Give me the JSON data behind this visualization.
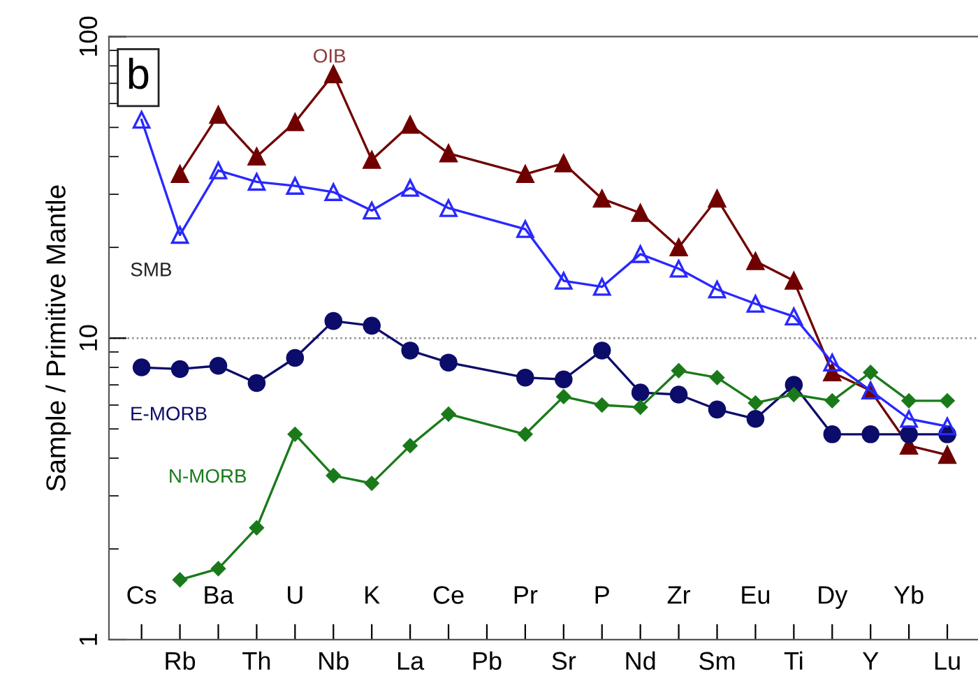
{
  "chart_data": {
    "type": "line",
    "ylabel": "Sample / Primitive Mantle",
    "log": true,
    "ylim": [
      1,
      100
    ],
    "yticks": [
      1,
      10,
      100
    ],
    "grid": false,
    "legend": false,
    "line_style": "solid",
    "categories": [
      "Cs",
      "Rb",
      "Ba",
      "Th",
      "U",
      "Nb",
      "K",
      "La",
      "Ce",
      "Pb",
      "Pr",
      "Sr",
      "P",
      "Nd",
      "Zr",
      "Sm",
      "Eu",
      "Ti",
      "Dy",
      "Y",
      "Yb",
      "Lu"
    ],
    "series": [
      {
        "name": "OIB",
        "color": "#700000",
        "marker": "triangle",
        "values": [
          null,
          35,
          55,
          40,
          52,
          75,
          39,
          51,
          41,
          null,
          35,
          38,
          29,
          26,
          20,
          29,
          18,
          15.5,
          7.7,
          6.7,
          4.4,
          4.1
        ]
      },
      {
        "name": "SMB",
        "color": "#2828ff",
        "marker": "triangle",
        "values": [
          53,
          22,
          36,
          33,
          32,
          30.5,
          26.5,
          31.5,
          27,
          null,
          23,
          15.5,
          14.8,
          19,
          17,
          14.5,
          13,
          11.8,
          8.3,
          6.7,
          5.4,
          5.1
        ]
      },
      {
        "name": "E-MORB",
        "color": "#0c0c6a",
        "marker": "circle",
        "values": [
          8,
          7.9,
          8.1,
          7.1,
          8.6,
          11.4,
          11,
          9.1,
          8.3,
          null,
          7.4,
          7.3,
          9.1,
          6.6,
          6.5,
          5.8,
          5.4,
          7,
          4.8,
          4.8,
          4.8,
          4.8
        ]
      },
      {
        "name": "N-MORB",
        "color": "#1a7a1a",
        "marker": "diamond",
        "values": [
          null,
          1.58,
          1.72,
          2.35,
          4.8,
          3.5,
          3.3,
          4.4,
          5.6,
          null,
          4.8,
          6.4,
          6.0,
          5.9,
          7.8,
          7.4,
          6.1,
          6.5,
          6.2,
          7.7,
          6.2,
          6.2
        ]
      }
    ],
    "ref_lines": [
      {
        "axis": "y",
        "value": 10,
        "color": "#888888",
        "line_style": "dotted"
      }
    ],
    "annotations": [
      "b"
    ]
  }
}
